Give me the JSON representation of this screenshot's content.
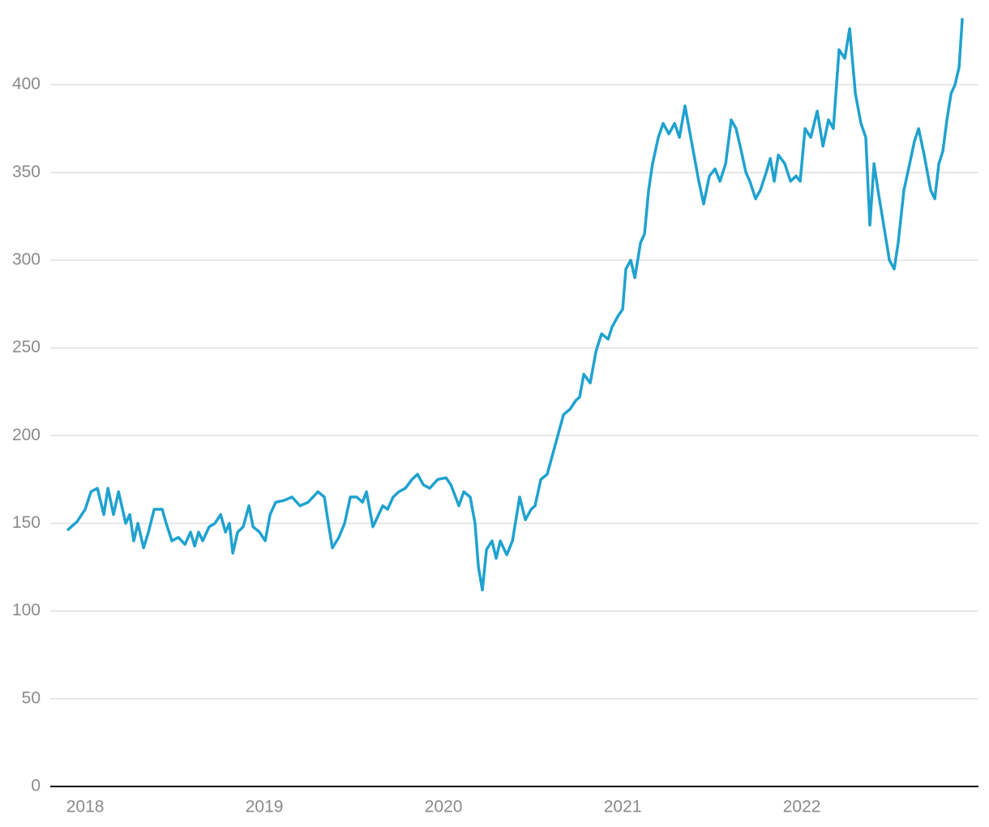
{
  "chart_data": {
    "type": "line",
    "x": [
      2017.9,
      2017.955,
      2018.0,
      2018.032,
      2018.068,
      2018.104,
      2018.127,
      2018.158,
      2018.186,
      2018.226,
      2018.249,
      2018.271,
      2018.294,
      2018.326,
      2018.353,
      2018.385,
      2018.43,
      2018.452,
      2018.484,
      2018.52,
      2018.557,
      2018.588,
      2018.611,
      2018.633,
      2018.656,
      2018.692,
      2018.724,
      2018.756,
      2018.783,
      2018.805,
      2018.824,
      2018.851,
      2018.882,
      2018.914,
      2018.937,
      2018.973,
      2019.005,
      2019.032,
      2019.063,
      2019.109,
      2019.154,
      2019.199,
      2019.244,
      2019.299,
      2019.335,
      2019.357,
      2019.38,
      2019.416,
      2019.448,
      2019.48,
      2019.516,
      2019.548,
      2019.57,
      2019.606,
      2019.638,
      2019.661,
      2019.688,
      2019.719,
      2019.751,
      2019.787,
      2019.824,
      2019.855,
      2019.887,
      2019.923,
      2019.968,
      2020.014,
      2020.041,
      2020.086,
      2020.113,
      2020.149,
      2020.176,
      2020.195,
      2020.217,
      2020.24,
      2020.271,
      2020.294,
      2020.317,
      2020.353,
      2020.385,
      2020.425,
      2020.457,
      2020.489,
      2020.511,
      2020.543,
      2020.579,
      2020.611,
      2020.638,
      2020.67,
      2020.706,
      2020.738,
      2020.76,
      2020.783,
      2020.819,
      2020.851,
      2020.882,
      2020.919,
      2020.941,
      2020.973,
      2021.0,
      2021.018,
      2021.045,
      2021.068,
      2021.1,
      2021.122,
      2021.145,
      2021.167,
      2021.199,
      2021.226,
      2021.258,
      2021.29,
      2021.317,
      2021.348,
      2021.371,
      2021.398,
      2021.425,
      2021.452,
      2021.484,
      2021.516,
      2021.543,
      2021.575,
      2021.606,
      2021.633,
      2021.656,
      2021.688,
      2021.71,
      2021.742,
      2021.769,
      2021.801,
      2021.824,
      2021.846,
      2021.869,
      2021.905,
      2021.937,
      2021.968,
      2021.991,
      2022.018,
      2022.05,
      2022.086,
      2022.118,
      2022.149,
      2022.176,
      2022.208,
      2022.24,
      2022.267,
      2022.299,
      2022.33,
      2022.357,
      2022.38,
      2022.403,
      2022.425,
      2022.457,
      2022.489,
      2022.516,
      2022.538,
      2022.57,
      2022.602,
      2022.629,
      2022.652,
      2022.683,
      2022.719,
      2022.742,
      2022.765,
      2022.787,
      2022.81,
      2022.833,
      2022.855,
      2022.878,
      2022.896
    ],
    "values": [
      146,
      151,
      158,
      168,
      170,
      155,
      170,
      155,
      168,
      150,
      155,
      140,
      150,
      136,
      145,
      158,
      158,
      150,
      140,
      142,
      138,
      145,
      137,
      145,
      140,
      148,
      150,
      155,
      145,
      150,
      133,
      145,
      148,
      160,
      148,
      145,
      140,
      155,
      162,
      163,
      165,
      160,
      162,
      168,
      165,
      150,
      136,
      142,
      150,
      165,
      165,
      162,
      168,
      148,
      155,
      160,
      158,
      165,
      168,
      170,
      175,
      178,
      172,
      170,
      175,
      176,
      172,
      160,
      168,
      165,
      150,
      125,
      112,
      135,
      140,
      130,
      140,
      132,
      140,
      165,
      152,
      158,
      160,
      175,
      178,
      190,
      200,
      212,
      215,
      220,
      222,
      235,
      230,
      248,
      258,
      255,
      262,
      268,
      272,
      295,
      300,
      290,
      310,
      315,
      340,
      355,
      370,
      378,
      372,
      378,
      370,
      388,
      375,
      360,
      345,
      332,
      348,
      352,
      345,
      355,
      380,
      375,
      365,
      350,
      345,
      335,
      340,
      350,
      358,
      345,
      360,
      355,
      345,
      348,
      345,
      375,
      370,
      385,
      365,
      380,
      375,
      420,
      415,
      432,
      395,
      378,
      370,
      320,
      355,
      340,
      320,
      300,
      295,
      310,
      340,
      355,
      368,
      375,
      360,
      340,
      335,
      355,
      362,
      380,
      395,
      400,
      410,
      438
    ],
    "color": "#1fa2cf",
    "xlim": [
      2017.805,
      2022.986
    ],
    "xticks": [
      2018,
      2019,
      2020,
      2021,
      2022
    ],
    "ylim": [
      0,
      440
    ],
    "yticks": [
      0,
      50,
      100,
      150,
      200,
      250,
      300,
      350,
      400
    ],
    "grid": true
  }
}
